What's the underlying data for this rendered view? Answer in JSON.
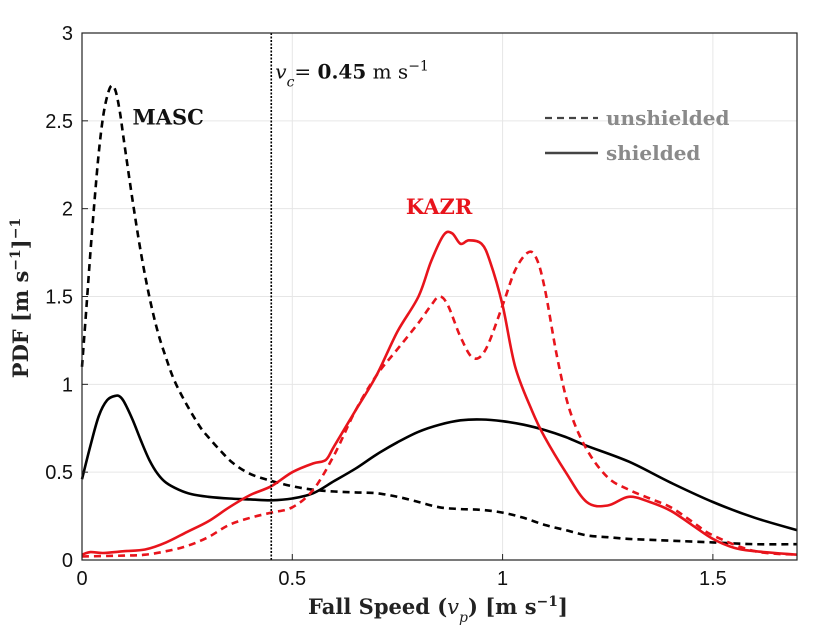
{
  "chart_data": {
    "type": "line",
    "xlabel_prefix": "Fall Speed (",
    "xlabel_var": "v",
    "xlabel_sub": "p",
    "xlabel_suffix": ") [m s",
    "xlabel_exp": "−1",
    "xlabel_close": "]",
    "ylabel_prefix": "PDF [m s",
    "ylabel_exp1": "−1",
    "ylabel_mid": "]",
    "ylabel_exp2": "−1",
    "xlim": [
      0,
      1.7
    ],
    "ylim": [
      0,
      3
    ],
    "xticks": [
      0,
      0.5,
      1,
      1.5
    ],
    "xtick_labels": [
      "0",
      "0.5",
      "1",
      "1.5"
    ],
    "yticks": [
      0,
      0.5,
      1,
      1.5,
      2,
      2.5,
      3
    ],
    "ytick_labels": [
      "0",
      "0.5",
      "1",
      "1.5",
      "2",
      "2.5",
      "3"
    ],
    "grid": true,
    "vline": {
      "x": 0.45,
      "label_var": "v",
      "label_sub": "c",
      "label_eq": "= ",
      "label_value": "0.45",
      "label_unit": " m s",
      "label_exp": "−1"
    },
    "annotations": [
      {
        "text": "MASC",
        "x": 0.12,
        "y": 2.48,
        "color": "#111111"
      },
      {
        "text": "KAZR",
        "x": 0.77,
        "y": 1.97,
        "color": "#e8141c"
      }
    ],
    "legend": {
      "position": "top-right",
      "entries": [
        {
          "label": "unshielded",
          "style": "dashed"
        },
        {
          "label": "shielded",
          "style": "solid"
        }
      ]
    },
    "series": [
      {
        "name": "MASC unshielded",
        "color": "#000000",
        "style": "dashed",
        "x": [
          0,
          0.01,
          0.02,
          0.03,
          0.04,
          0.05,
          0.06,
          0.07,
          0.08,
          0.09,
          0.1,
          0.12,
          0.14,
          0.16,
          0.18,
          0.2,
          0.22,
          0.25,
          0.28,
          0.3,
          0.33,
          0.36,
          0.4,
          0.45,
          0.5,
          0.55,
          0.6,
          0.65,
          0.7,
          0.75,
          0.8,
          0.85,
          0.9,
          0.95,
          1.0,
          1.05,
          1.1,
          1.15,
          1.2,
          1.25,
          1.3,
          1.35,
          1.4,
          1.5,
          1.6,
          1.7
        ],
        "y": [
          1.1,
          1.42,
          1.75,
          2.05,
          2.32,
          2.52,
          2.64,
          2.7,
          2.67,
          2.55,
          2.38,
          2.05,
          1.75,
          1.5,
          1.3,
          1.15,
          1.02,
          0.88,
          0.76,
          0.7,
          0.62,
          0.55,
          0.49,
          0.45,
          0.42,
          0.4,
          0.39,
          0.385,
          0.38,
          0.36,
          0.33,
          0.3,
          0.29,
          0.285,
          0.27,
          0.24,
          0.2,
          0.17,
          0.14,
          0.13,
          0.12,
          0.115,
          0.11,
          0.1,
          0.09,
          0.09
        ]
      },
      {
        "name": "MASC shielded",
        "color": "#000000",
        "style": "solid",
        "x": [
          0,
          0.02,
          0.04,
          0.06,
          0.08,
          0.09,
          0.1,
          0.12,
          0.14,
          0.16,
          0.18,
          0.2,
          0.23,
          0.26,
          0.3,
          0.35,
          0.4,
          0.45,
          0.5,
          0.55,
          0.6,
          0.65,
          0.7,
          0.75,
          0.8,
          0.85,
          0.9,
          0.95,
          1.0,
          1.05,
          1.1,
          1.15,
          1.2,
          1.3,
          1.4,
          1.5,
          1.6,
          1.7
        ],
        "y": [
          0.46,
          0.65,
          0.82,
          0.91,
          0.935,
          0.93,
          0.9,
          0.8,
          0.68,
          0.57,
          0.49,
          0.44,
          0.4,
          0.375,
          0.36,
          0.35,
          0.345,
          0.34,
          0.35,
          0.38,
          0.45,
          0.52,
          0.6,
          0.67,
          0.73,
          0.77,
          0.795,
          0.8,
          0.79,
          0.77,
          0.74,
          0.7,
          0.65,
          0.56,
          0.44,
          0.33,
          0.24,
          0.17
        ]
      },
      {
        "name": "KAZR unshielded",
        "color": "#e8141c",
        "style": "dashed",
        "x": [
          0,
          0.1,
          0.15,
          0.2,
          0.25,
          0.3,
          0.35,
          0.4,
          0.45,
          0.5,
          0.55,
          0.6,
          0.65,
          0.7,
          0.75,
          0.8,
          0.83,
          0.85,
          0.87,
          0.9,
          0.93,
          0.96,
          1.0,
          1.03,
          1.06,
          1.08,
          1.1,
          1.13,
          1.16,
          1.2,
          1.25,
          1.3,
          1.35,
          1.4,
          1.45,
          1.5,
          1.6,
          1.7
        ],
        "y": [
          0.02,
          0.025,
          0.03,
          0.05,
          0.08,
          0.13,
          0.2,
          0.24,
          0.27,
          0.3,
          0.4,
          0.6,
          0.85,
          1.05,
          1.2,
          1.35,
          1.45,
          1.5,
          1.45,
          1.27,
          1.15,
          1.2,
          1.45,
          1.65,
          1.75,
          1.72,
          1.55,
          1.15,
          0.85,
          0.63,
          0.47,
          0.4,
          0.35,
          0.3,
          0.22,
          0.14,
          0.05,
          0.03
        ]
      },
      {
        "name": "KAZR shielded",
        "color": "#e8141c",
        "style": "solid",
        "x": [
          0,
          0.02,
          0.05,
          0.1,
          0.15,
          0.2,
          0.25,
          0.3,
          0.35,
          0.4,
          0.45,
          0.5,
          0.55,
          0.58,
          0.6,
          0.65,
          0.7,
          0.75,
          0.8,
          0.83,
          0.86,
          0.88,
          0.9,
          0.92,
          0.95,
          0.97,
          1.0,
          1.03,
          1.07,
          1.1,
          1.15,
          1.2,
          1.25,
          1.3,
          1.35,
          1.4,
          1.45,
          1.5,
          1.55,
          1.6,
          1.7
        ],
        "y": [
          0.03,
          0.045,
          0.04,
          0.05,
          0.06,
          0.1,
          0.16,
          0.22,
          0.3,
          0.37,
          0.42,
          0.5,
          0.55,
          0.57,
          0.65,
          0.85,
          1.05,
          1.3,
          1.5,
          1.7,
          1.85,
          1.86,
          1.8,
          1.82,
          1.8,
          1.7,
          1.45,
          1.1,
          0.85,
          0.7,
          0.5,
          0.33,
          0.31,
          0.36,
          0.33,
          0.28,
          0.2,
          0.12,
          0.07,
          0.05,
          0.03
        ]
      }
    ]
  }
}
